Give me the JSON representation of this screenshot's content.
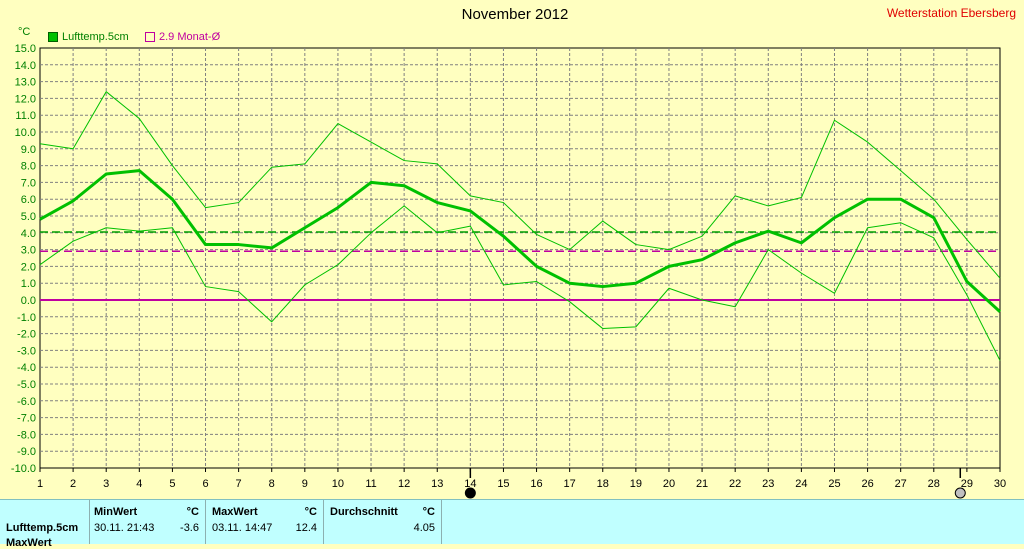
{
  "header": {
    "title": "November 2012",
    "station": "Wetterstation Ebersberg",
    "unit": "°C"
  },
  "legend": [
    {
      "label": "Lufttemp.5cm",
      "color": "#00c000"
    },
    {
      "label": "2.9 Monat-Ø",
      "color": "#c000a0"
    }
  ],
  "stats": {
    "row_label": "Lufttemp.5cm",
    "row_label_2": "MaxWert",
    "min_header": "MinWert",
    "max_header": "MaxWert",
    "avg_header": "Durchschnitt",
    "unit": "°C",
    "min_time": "30.11.  21:43",
    "min_value": "-3.6",
    "max_time": "03.11.  14:47",
    "max_value": "12.4",
    "avg_value": "4.05"
  },
  "chart_data": {
    "type": "line",
    "title": "November 2012",
    "xlabel": "",
    "ylabel": "°C",
    "x": [
      1,
      2,
      3,
      4,
      5,
      6,
      7,
      8,
      9,
      10,
      11,
      12,
      13,
      14,
      15,
      16,
      17,
      18,
      19,
      20,
      21,
      22,
      23,
      24,
      25,
      26,
      27,
      28,
      29,
      30
    ],
    "xlim": [
      1,
      30
    ],
    "ylim": [
      -10,
      15
    ],
    "ytick_step": 1,
    "grid": true,
    "legend_position": "top-left",
    "series": [
      {
        "name": "Lufttemp.5cm",
        "role": "mean",
        "color": "#00c000",
        "values": [
          4.8,
          5.9,
          7.5,
          7.7,
          6.0,
          3.3,
          3.3,
          3.1,
          4.3,
          5.5,
          7.0,
          6.8,
          5.8,
          5.3,
          3.8,
          2.0,
          1.0,
          0.8,
          1.0,
          2.0,
          2.4,
          3.4,
          4.1,
          3.4,
          4.9,
          6.0,
          6.0,
          4.9,
          1.1,
          -0.7
        ]
      },
      {
        "role": "max",
        "color": "#00c000",
        "values": [
          9.3,
          9.0,
          12.4,
          10.8,
          8.0,
          5.5,
          5.8,
          7.9,
          8.1,
          10.5,
          9.4,
          8.3,
          8.1,
          6.2,
          5.8,
          3.9,
          3.0,
          4.7,
          3.3,
          3.0,
          3.8,
          6.2,
          5.6,
          6.1,
          10.7,
          9.4,
          7.7,
          6.0,
          3.6,
          1.3
        ]
      },
      {
        "role": "min",
        "color": "#00c000",
        "values": [
          2.1,
          3.5,
          4.3,
          4.1,
          4.3,
          0.8,
          0.5,
          -1.3,
          0.9,
          2.1,
          4.0,
          5.6,
          4.0,
          4.4,
          0.9,
          1.1,
          -0.1,
          -1.7,
          -1.6,
          0.7,
          0.0,
          -0.4,
          3.0,
          1.6,
          0.4,
          4.3,
          4.6,
          3.7,
          0.3,
          -3.6
        ]
      },
      {
        "name": "2.9 Monat-Ø",
        "role": "reference",
        "color": "#c000a0",
        "dashed": true,
        "constant": 2.9
      },
      {
        "role": "average",
        "color": "#00a000",
        "dashed": true,
        "constant": 4.05
      },
      {
        "role": "zero",
        "color": "#c000a0",
        "constant": 0
      }
    ],
    "markers": [
      {
        "x": 14,
        "symbol": "filled-circle"
      },
      {
        "x": 28.8,
        "symbol": "open-circle"
      }
    ]
  }
}
